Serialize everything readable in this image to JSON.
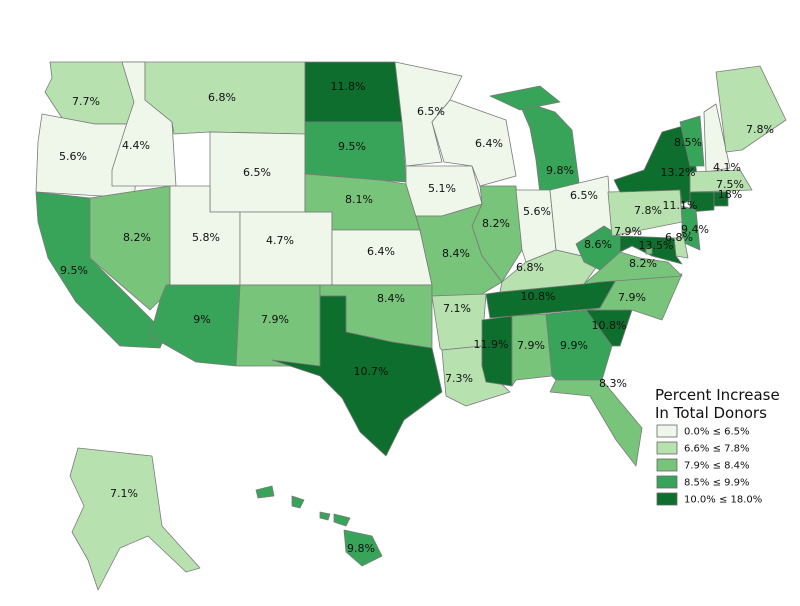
{
  "map_data": {
    "legend": {
      "title_lines": [
        "Percent Increase",
        "In Total Donors"
      ],
      "bins": [
        {
          "min": 0.0,
          "max": 6.5,
          "label": "0.0% ≤ 6.5%",
          "color": "#eef7ea"
        },
        {
          "min": 6.6,
          "max": 7.8,
          "label": "6.6% ≤ 7.8%",
          "color": "#b8e1b0"
        },
        {
          "min": 7.9,
          "max": 8.4,
          "label": "7.9% ≤ 8.4%",
          "color": "#78c47a"
        },
        {
          "min": 8.5,
          "max": 9.9,
          "label": "8.5% ≤ 9.9%",
          "color": "#38a459"
        },
        {
          "min": 10.0,
          "max": 18.0,
          "label": "10.0% ≤ 18.0%",
          "color": "#0e6e2e"
        }
      ]
    },
    "regions": [
      {
        "value": 7.7,
        "value_label": "7.7%"
      },
      {
        "value": 5.6,
        "value_label": "5.6%"
      },
      {
        "value": 9.5,
        "value_label": "9.5%"
      },
      {
        "value": 4.4,
        "value_label": "4.4%"
      },
      {
        "value": 6.8,
        "value_label": "6.8%"
      },
      {
        "value": 6.5,
        "value_label": "6.5%"
      },
      {
        "value": 8.2,
        "value_label": "8.2%"
      },
      {
        "value": 5.8,
        "value_label": "5.8%"
      },
      {
        "value": 4.7,
        "value_label": "4.7%"
      },
      {
        "value": 9,
        "value_label": "9%"
      },
      {
        "value": 7.9,
        "value_label": "7.9%"
      },
      {
        "value": 11.8,
        "value_label": "11.8%"
      },
      {
        "value": 9.5,
        "value_label": "9.5%"
      },
      {
        "value": 8.1,
        "value_label": "8.1%"
      },
      {
        "value": 6.4,
        "value_label": "6.4%"
      },
      {
        "value": 8.4,
        "value_label": "8.4%"
      },
      {
        "value": 10.7,
        "value_label": "10.7%"
      },
      {
        "value": 6.5,
        "value_label": "6.5%"
      },
      {
        "value": 5.1,
        "value_label": "5.1%"
      },
      {
        "value": 6.4,
        "value_label": "6.4%"
      },
      {
        "value": 9.8,
        "value_label": "9.8%"
      },
      {
        "value": 8.2,
        "value_label": "8.2%"
      },
      {
        "value": 5.6,
        "value_label": "5.6%"
      },
      {
        "value": 6.5,
        "value_label": "6.5%"
      },
      {
        "value": 8.4,
        "value_label": "8.4%"
      },
      {
        "value": 7.1,
        "value_label": "7.1%"
      },
      {
        "value": 7.3,
        "value_label": "7.3%"
      },
      {
        "value": 11.9,
        "value_label": "11.9%"
      },
      {
        "value": 7.9,
        "value_label": "7.9%"
      },
      {
        "value": 10.8,
        "value_label": "10.8%"
      },
      {
        "value": 6.8,
        "value_label": "6.8%"
      },
      {
        "value": 9.9,
        "value_label": "9.9%"
      },
      {
        "value": 10.8,
        "value_label": "10.8%"
      },
      {
        "value": 7.9,
        "value_label": "7.9%"
      },
      {
        "value": 8.3,
        "value_label": "8.3%"
      },
      {
        "value": 8.2,
        "value_label": "8.2%"
      },
      {
        "value": 8.6,
        "value_label": "8.6%"
      },
      {
        "value": 7.8,
        "value_label": "7.8%"
      },
      {
        "value": 13.2,
        "value_label": "13.2%"
      },
      {
        "value": 8.5,
        "value_label": "8.5%"
      },
      {
        "value": 4.1,
        "value_label": "4.1%"
      },
      {
        "value": 7.8,
        "value_label": "7.8%"
      },
      {
        "value": 7.5,
        "value_label": "7.5%"
      },
      {
        "value": 11.1,
        "value_label": "11.1%"
      },
      {
        "value": 18,
        "value_label": "18%"
      },
      {
        "value": 9.4,
        "value_label": "9.4%"
      },
      {
        "value": 6.8,
        "value_label": "6.8%"
      },
      {
        "value": 13.5,
        "value_label": "13.5%"
      },
      {
        "value": 7.9,
        "value_label": "7.9%"
      },
      {
        "value": 7.1,
        "value_label": "7.1%"
      },
      {
        "value": 9.8,
        "value_label": "9.8%"
      }
    ]
  }
}
